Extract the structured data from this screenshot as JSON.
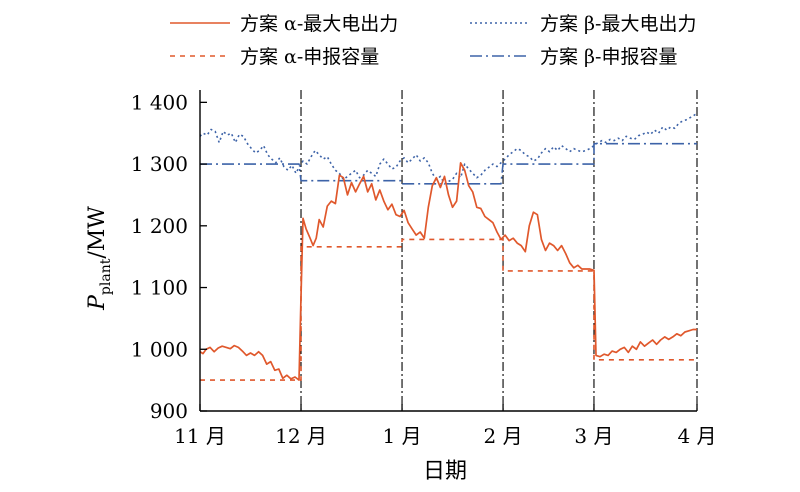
{
  "chart_data": {
    "type": "line",
    "xlabel": "日期",
    "ylabel_main": "P",
    "ylabel_sub": "plant",
    "ylabel_unit": "/MW",
    "ylim": [
      900,
      1420
    ],
    "xlim": [
      0,
      4.92
    ],
    "x_ticks": [
      {
        "x": 0,
        "label": "11 月"
      },
      {
        "x": 1,
        "label": "12 月"
      },
      {
        "x": 2,
        "label": "1 月"
      },
      {
        "x": 3,
        "label": "2 月"
      },
      {
        "x": 3.9,
        "label": "3 月"
      },
      {
        "x": 4.92,
        "label": "4 月"
      }
    ],
    "y_ticks": [
      {
        "y": 900,
        "label": "900"
      },
      {
        "y": 1000,
        "label": "1 000"
      },
      {
        "y": 1100,
        "label": "1 100"
      },
      {
        "y": 1200,
        "label": "1 200"
      },
      {
        "y": 1300,
        "label": "1 300"
      },
      {
        "y": 1400,
        "label": "1 400"
      }
    ],
    "month_boundaries": [
      1,
      2,
      3,
      3.9
    ],
    "colors": {
      "alpha": "#e0582c",
      "beta": "#3d63a8"
    },
    "series": [
      {
        "name": "方案 α-最大电出力",
        "scheme": "alpha",
        "style": "solid",
        "points": [
          [
            0,
            996
          ],
          [
            0.03,
            993
          ],
          [
            0.06,
            1000
          ],
          [
            0.1,
            1003
          ],
          [
            0.14,
            996
          ],
          [
            0.18,
            1002
          ],
          [
            0.22,
            1005
          ],
          [
            0.26,
            1003
          ],
          [
            0.3,
            1001
          ],
          [
            0.34,
            1006
          ],
          [
            0.38,
            1003
          ],
          [
            0.42,
            997
          ],
          [
            0.46,
            990
          ],
          [
            0.5,
            994
          ],
          [
            0.54,
            990
          ],
          [
            0.58,
            996
          ],
          [
            0.62,
            990
          ],
          [
            0.66,
            976
          ],
          [
            0.7,
            980
          ],
          [
            0.74,
            966
          ],
          [
            0.78,
            968
          ],
          [
            0.82,
            953
          ],
          [
            0.86,
            958
          ],
          [
            0.9,
            952
          ],
          [
            0.94,
            955
          ],
          [
            0.98,
            950
          ],
          [
            1.0,
            1085
          ],
          [
            1.02,
            1212
          ],
          [
            1.05,
            1195
          ],
          [
            1.09,
            1180
          ],
          [
            1.12,
            1168
          ],
          [
            1.15,
            1180
          ],
          [
            1.18,
            1210
          ],
          [
            1.22,
            1198
          ],
          [
            1.26,
            1232
          ],
          [
            1.3,
            1240
          ],
          [
            1.34,
            1236
          ],
          [
            1.38,
            1282
          ],
          [
            1.42,
            1278
          ],
          [
            1.46,
            1250
          ],
          [
            1.5,
            1270
          ],
          [
            1.54,
            1255
          ],
          [
            1.58,
            1268
          ],
          [
            1.62,
            1280
          ],
          [
            1.66,
            1255
          ],
          [
            1.7,
            1268
          ],
          [
            1.74,
            1242
          ],
          [
            1.78,
            1258
          ],
          [
            1.82,
            1240
          ],
          [
            1.86,
            1226
          ],
          [
            1.9,
            1235
          ],
          [
            1.94,
            1218
          ],
          [
            1.98,
            1215
          ],
          [
            2.02,
            1225
          ],
          [
            2.06,
            1205
          ],
          [
            2.1,
            1195
          ],
          [
            2.14,
            1185
          ],
          [
            2.18,
            1190
          ],
          [
            2.22,
            1180
          ],
          [
            2.26,
            1230
          ],
          [
            2.3,
            1265
          ],
          [
            2.34,
            1278
          ],
          [
            2.38,
            1262
          ],
          [
            2.42,
            1280
          ],
          [
            2.46,
            1250
          ],
          [
            2.5,
            1230
          ],
          [
            2.54,
            1240
          ],
          [
            2.58,
            1302
          ],
          [
            2.62,
            1290
          ],
          [
            2.66,
            1265
          ],
          [
            2.7,
            1255
          ],
          [
            2.74,
            1230
          ],
          [
            2.78,
            1228
          ],
          [
            2.82,
            1215
          ],
          [
            2.86,
            1210
          ],
          [
            2.9,
            1205
          ],
          [
            2.94,
            1190
          ],
          [
            2.98,
            1178
          ],
          [
            3.02,
            1185
          ],
          [
            3.06,
            1176
          ],
          [
            3.1,
            1180
          ],
          [
            3.14,
            1172
          ],
          [
            3.18,
            1168
          ],
          [
            3.22,
            1158
          ],
          [
            3.26,
            1200
          ],
          [
            3.3,
            1222
          ],
          [
            3.34,
            1218
          ],
          [
            3.38,
            1178
          ],
          [
            3.42,
            1160
          ],
          [
            3.46,
            1172
          ],
          [
            3.5,
            1168
          ],
          [
            3.54,
            1160
          ],
          [
            3.58,
            1168
          ],
          [
            3.62,
            1155
          ],
          [
            3.66,
            1140
          ],
          [
            3.7,
            1132
          ],
          [
            3.74,
            1136
          ],
          [
            3.78,
            1130
          ],
          [
            3.82,
            1130
          ],
          [
            3.86,
            1130
          ],
          [
            3.9,
            1128
          ],
          [
            3.92,
            990
          ],
          [
            3.96,
            988
          ],
          [
            4.0,
            992
          ],
          [
            4.04,
            990
          ],
          [
            4.08,
            997
          ],
          [
            4.12,
            995
          ],
          [
            4.16,
            1000
          ],
          [
            4.2,
            1003
          ],
          [
            4.24,
            995
          ],
          [
            4.28,
            1005
          ],
          [
            4.32,
            1000
          ],
          [
            4.36,
            1012
          ],
          [
            4.4,
            1005
          ],
          [
            4.44,
            1010
          ],
          [
            4.48,
            1015
          ],
          [
            4.52,
            1008
          ],
          [
            4.56,
            1015
          ],
          [
            4.6,
            1020
          ],
          [
            4.64,
            1016
          ],
          [
            4.68,
            1020
          ],
          [
            4.72,
            1025
          ],
          [
            4.76,
            1022
          ],
          [
            4.8,
            1028
          ],
          [
            4.84,
            1030
          ],
          [
            4.88,
            1032
          ],
          [
            4.92,
            1032
          ]
        ]
      },
      {
        "name": "方案 β-最大电出力",
        "scheme": "beta",
        "style": "dotted",
        "points": [
          [
            0,
            1345
          ],
          [
            0.03,
            1350
          ],
          [
            0.07,
            1347
          ],
          [
            0.11,
            1356
          ],
          [
            0.15,
            1353
          ],
          [
            0.19,
            1335
          ],
          [
            0.23,
            1353
          ],
          [
            0.27,
            1347
          ],
          [
            0.31,
            1350
          ],
          [
            0.35,
            1335
          ],
          [
            0.39,
            1348
          ],
          [
            0.43,
            1345
          ],
          [
            0.47,
            1333
          ],
          [
            0.51,
            1325
          ],
          [
            0.55,
            1318
          ],
          [
            0.59,
            1322
          ],
          [
            0.63,
            1330
          ],
          [
            0.67,
            1315
          ],
          [
            0.71,
            1308
          ],
          [
            0.75,
            1302
          ],
          [
            0.79,
            1310
          ],
          [
            0.83,
            1296
          ],
          [
            0.87,
            1290
          ],
          [
            0.91,
            1298
          ],
          [
            0.95,
            1285
          ],
          [
            0.98,
            1295
          ],
          [
            1.02,
            1305
          ],
          [
            1.06,
            1300
          ],
          [
            1.1,
            1312
          ],
          [
            1.14,
            1322
          ],
          [
            1.18,
            1315
          ],
          [
            1.22,
            1308
          ],
          [
            1.26,
            1312
          ],
          [
            1.3,
            1300
          ],
          [
            1.34,
            1290
          ],
          [
            1.38,
            1285
          ],
          [
            1.42,
            1275
          ],
          [
            1.46,
            1280
          ],
          [
            1.5,
            1285
          ],
          [
            1.54,
            1290
          ],
          [
            1.58,
            1278
          ],
          [
            1.62,
            1282
          ],
          [
            1.66,
            1290
          ],
          [
            1.7,
            1285
          ],
          [
            1.74,
            1280
          ],
          [
            1.78,
            1300
          ],
          [
            1.82,
            1308
          ],
          [
            1.86,
            1300
          ],
          [
            1.9,
            1292
          ],
          [
            1.94,
            1295
          ],
          [
            1.98,
            1305
          ],
          [
            2.02,
            1310
          ],
          [
            2.06,
            1302
          ],
          [
            2.1,
            1308
          ],
          [
            2.14,
            1315
          ],
          [
            2.18,
            1305
          ],
          [
            2.22,
            1310
          ],
          [
            2.26,
            1302
          ],
          [
            2.3,
            1285
          ],
          [
            2.34,
            1275
          ],
          [
            2.38,
            1280
          ],
          [
            2.42,
            1268
          ],
          [
            2.46,
            1272
          ],
          [
            2.5,
            1275
          ],
          [
            2.54,
            1285
          ],
          [
            2.58,
            1278
          ],
          [
            2.62,
            1300
          ],
          [
            2.66,
            1292
          ],
          [
            2.7,
            1285
          ],
          [
            2.74,
            1278
          ],
          [
            2.78,
            1282
          ],
          [
            2.82,
            1290
          ],
          [
            2.86,
            1295
          ],
          [
            2.9,
            1300
          ],
          [
            2.94,
            1296
          ],
          [
            2.98,
            1302
          ],
          [
            3.02,
            1308
          ],
          [
            3.06,
            1315
          ],
          [
            3.1,
            1320
          ],
          [
            3.14,
            1325
          ],
          [
            3.18,
            1322
          ],
          [
            3.22,
            1315
          ],
          [
            3.26,
            1312
          ],
          [
            3.3,
            1305
          ],
          [
            3.34,
            1308
          ],
          [
            3.38,
            1318
          ],
          [
            3.42,
            1325
          ],
          [
            3.46,
            1320
          ],
          [
            3.5,
            1328
          ],
          [
            3.54,
            1322
          ],
          [
            3.58,
            1330
          ],
          [
            3.62,
            1325
          ],
          [
            3.66,
            1320
          ],
          [
            3.7,
            1325
          ],
          [
            3.74,
            1322
          ],
          [
            3.78,
            1320
          ],
          [
            3.82,
            1322
          ],
          [
            3.86,
            1325
          ],
          [
            3.9,
            1330
          ],
          [
            3.94,
            1335
          ],
          [
            3.98,
            1338
          ],
          [
            4.02,
            1335
          ],
          [
            4.06,
            1340
          ],
          [
            4.1,
            1338
          ],
          [
            4.14,
            1342
          ],
          [
            4.18,
            1338
          ],
          [
            4.22,
            1345
          ],
          [
            4.26,
            1342
          ],
          [
            4.3,
            1340
          ],
          [
            4.34,
            1346
          ],
          [
            4.38,
            1348
          ],
          [
            4.42,
            1352
          ],
          [
            4.46,
            1348
          ],
          [
            4.5,
            1355
          ],
          [
            4.54,
            1350
          ],
          [
            4.58,
            1360
          ],
          [
            4.62,
            1355
          ],
          [
            4.66,
            1360
          ],
          [
            4.7,
            1358
          ],
          [
            4.74,
            1366
          ],
          [
            4.78,
            1370
          ],
          [
            4.82,
            1372
          ],
          [
            4.86,
            1376
          ],
          [
            4.9,
            1380
          ],
          [
            4.92,
            1380
          ]
        ]
      },
      {
        "name": "方案 α-申报容量",
        "scheme": "alpha",
        "style": "dashed",
        "points": [
          [
            0,
            950
          ],
          [
            1.0,
            950
          ],
          [
            1.0,
            1166
          ],
          [
            2.0,
            1166
          ],
          [
            2.0,
            1178
          ],
          [
            3.0,
            1178
          ],
          [
            3.0,
            1127
          ],
          [
            3.9,
            1127
          ],
          [
            3.9,
            983
          ],
          [
            4.92,
            983
          ]
        ]
      },
      {
        "name": "方案 β-申报容量",
        "scheme": "beta",
        "style": "dashdot",
        "points": [
          [
            0,
            1300
          ],
          [
            0.98,
            1300
          ],
          [
            1.0,
            1273
          ],
          [
            2.0,
            1273
          ],
          [
            2.0,
            1268
          ],
          [
            2.98,
            1268
          ],
          [
            3.0,
            1300
          ],
          [
            3.9,
            1300
          ],
          [
            3.9,
            1333
          ],
          [
            4.92,
            1333
          ]
        ]
      }
    ],
    "legend": [
      {
        "label": "方案 α-最大电出力",
        "series": 0
      },
      {
        "label": "方案 β-最大电出力",
        "series": 1
      },
      {
        "label": "方案 α-申报容量",
        "series": 2
      },
      {
        "label": "方案 β-申报容量",
        "series": 3
      }
    ]
  }
}
